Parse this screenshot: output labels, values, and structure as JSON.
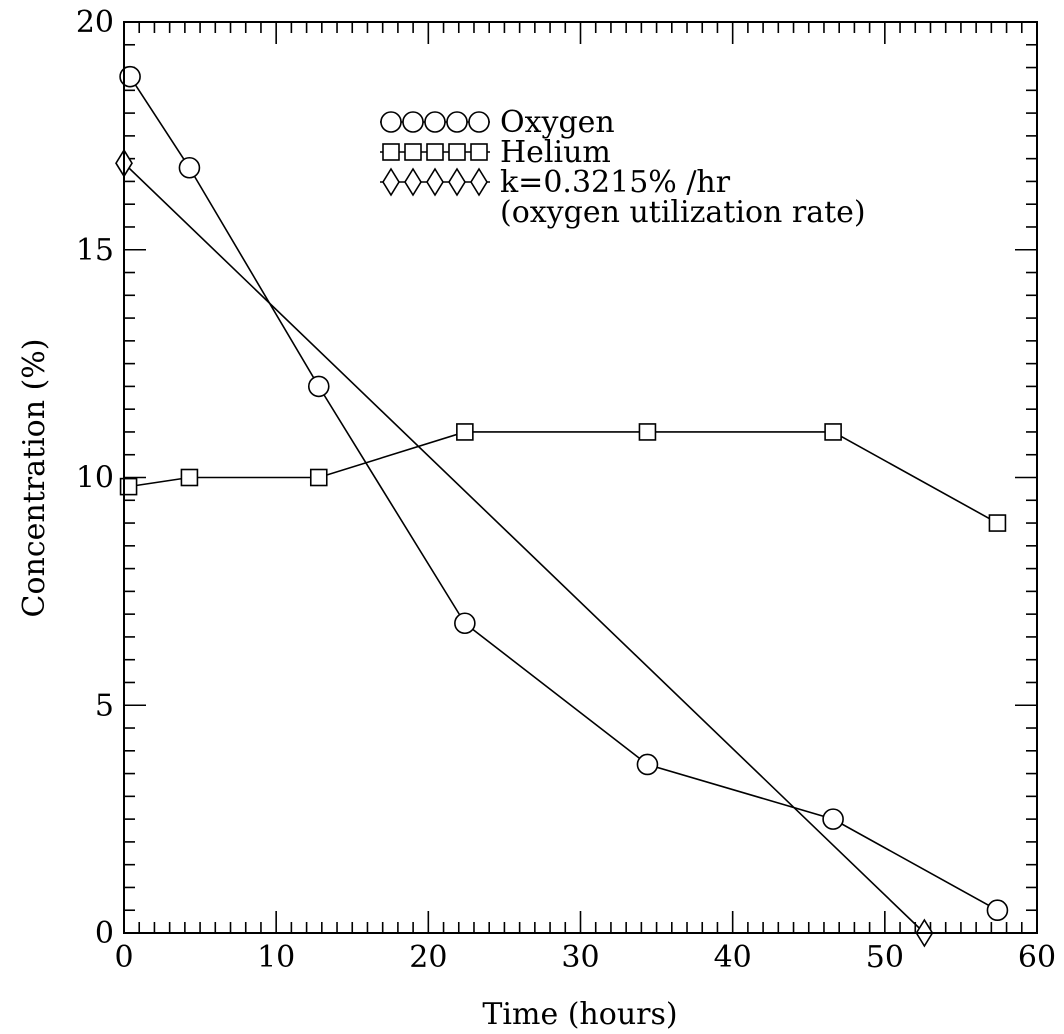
{
  "chart_data": {
    "type": "line",
    "xlabel": "Time (hours)",
    "ylabel": "Concentration (%)",
    "xlim": [
      0,
      60
    ],
    "ylim": [
      0,
      20
    ],
    "xticks": [
      0,
      10,
      20,
      30,
      40,
      50,
      60
    ],
    "yticks": [
      0,
      5,
      10,
      15,
      20
    ],
    "xtick_labels": [
      "0",
      "10",
      "20",
      "30",
      "40",
      "50",
      "60"
    ],
    "ytick_labels": [
      "0",
      "5",
      "10",
      "15",
      "20"
    ],
    "grid": false,
    "legend_position": "top-right",
    "series": [
      {
        "name": "Oxygen",
        "marker": "circle",
        "x": [
          0.4,
          4.3,
          12.8,
          22.4,
          34.4,
          46.6,
          57.4
        ],
        "y": [
          18.8,
          16.8,
          12.0,
          6.8,
          3.7,
          2.5,
          0.5
        ]
      },
      {
        "name": "Helium",
        "marker": "square",
        "x": [
          0.3,
          4.3,
          12.8,
          22.4,
          34.4,
          46.6,
          57.4
        ],
        "y": [
          9.8,
          10.0,
          10.0,
          11.0,
          11.0,
          11.0,
          9.0
        ]
      },
      {
        "name": "k=0.3215% /hr",
        "marker": "diamond",
        "x": [
          0.0,
          52.6
        ],
        "y": [
          16.9,
          0.0
        ]
      }
    ],
    "legend": [
      {
        "marker": "circle",
        "text": "Oxygen"
      },
      {
        "marker": "square",
        "text": "Helium"
      },
      {
        "marker": "diamond",
        "text": "k=0.3215% /hr"
      },
      {
        "marker": "",
        "text": "(oxygen utilization rate)"
      }
    ]
  }
}
